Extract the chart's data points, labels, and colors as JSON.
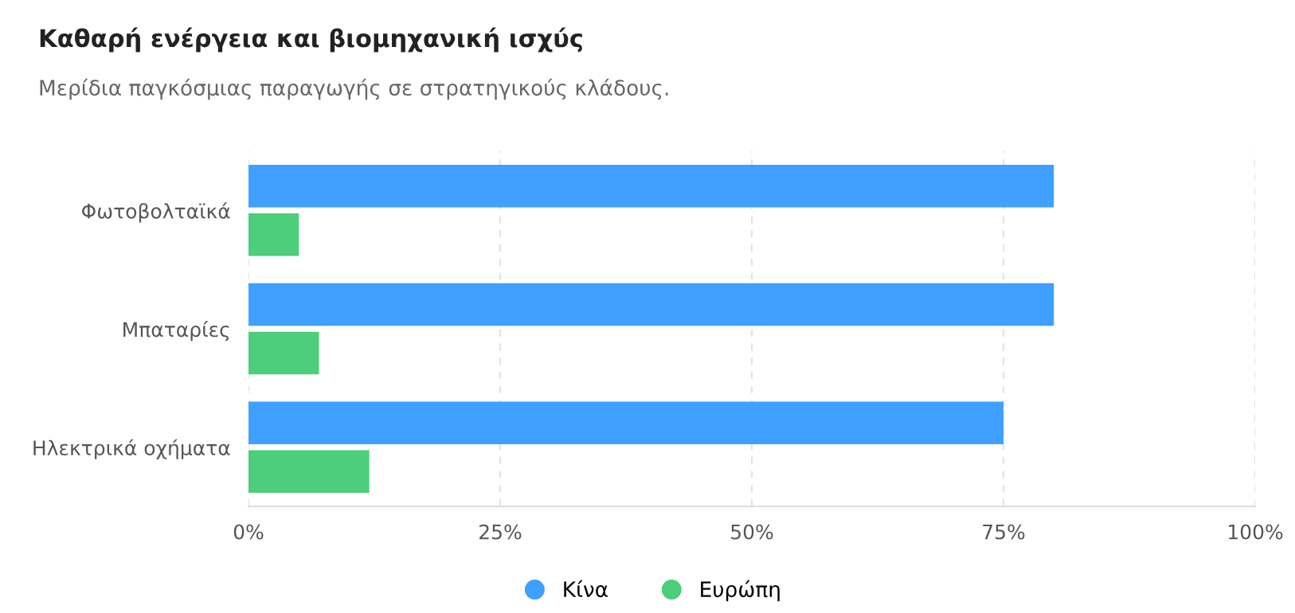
{
  "chart_data": {
    "type": "bar",
    "orientation": "horizontal",
    "title": "Καθαρή ενέργεια και βιομηχανική ισχύς",
    "subtitle": "Μερίδια παγκόσμιας παραγωγής σε στρατηγικούς κλάδους.",
    "categories": [
      "Φωτοβολταϊκά",
      "Μπαταρίες",
      "Ηλεκτρικά οχήματα"
    ],
    "series": [
      {
        "name": "Κίνα",
        "color": "#3fa0ff",
        "values": [
          80,
          80,
          75
        ]
      },
      {
        "name": "Ευρώπη",
        "color": "#4cce7a",
        "values": [
          5,
          7,
          12
        ]
      }
    ],
    "xlim": [
      0,
      100
    ],
    "xticks": [
      {
        "value": 0,
        "label": "0%"
      },
      {
        "value": 25,
        "label": "25%"
      },
      {
        "value": 50,
        "label": "50%"
      },
      {
        "value": 75,
        "label": "75%"
      },
      {
        "value": 100,
        "label": "100%"
      }
    ],
    "grid": "x",
    "legend": "bottom"
  }
}
